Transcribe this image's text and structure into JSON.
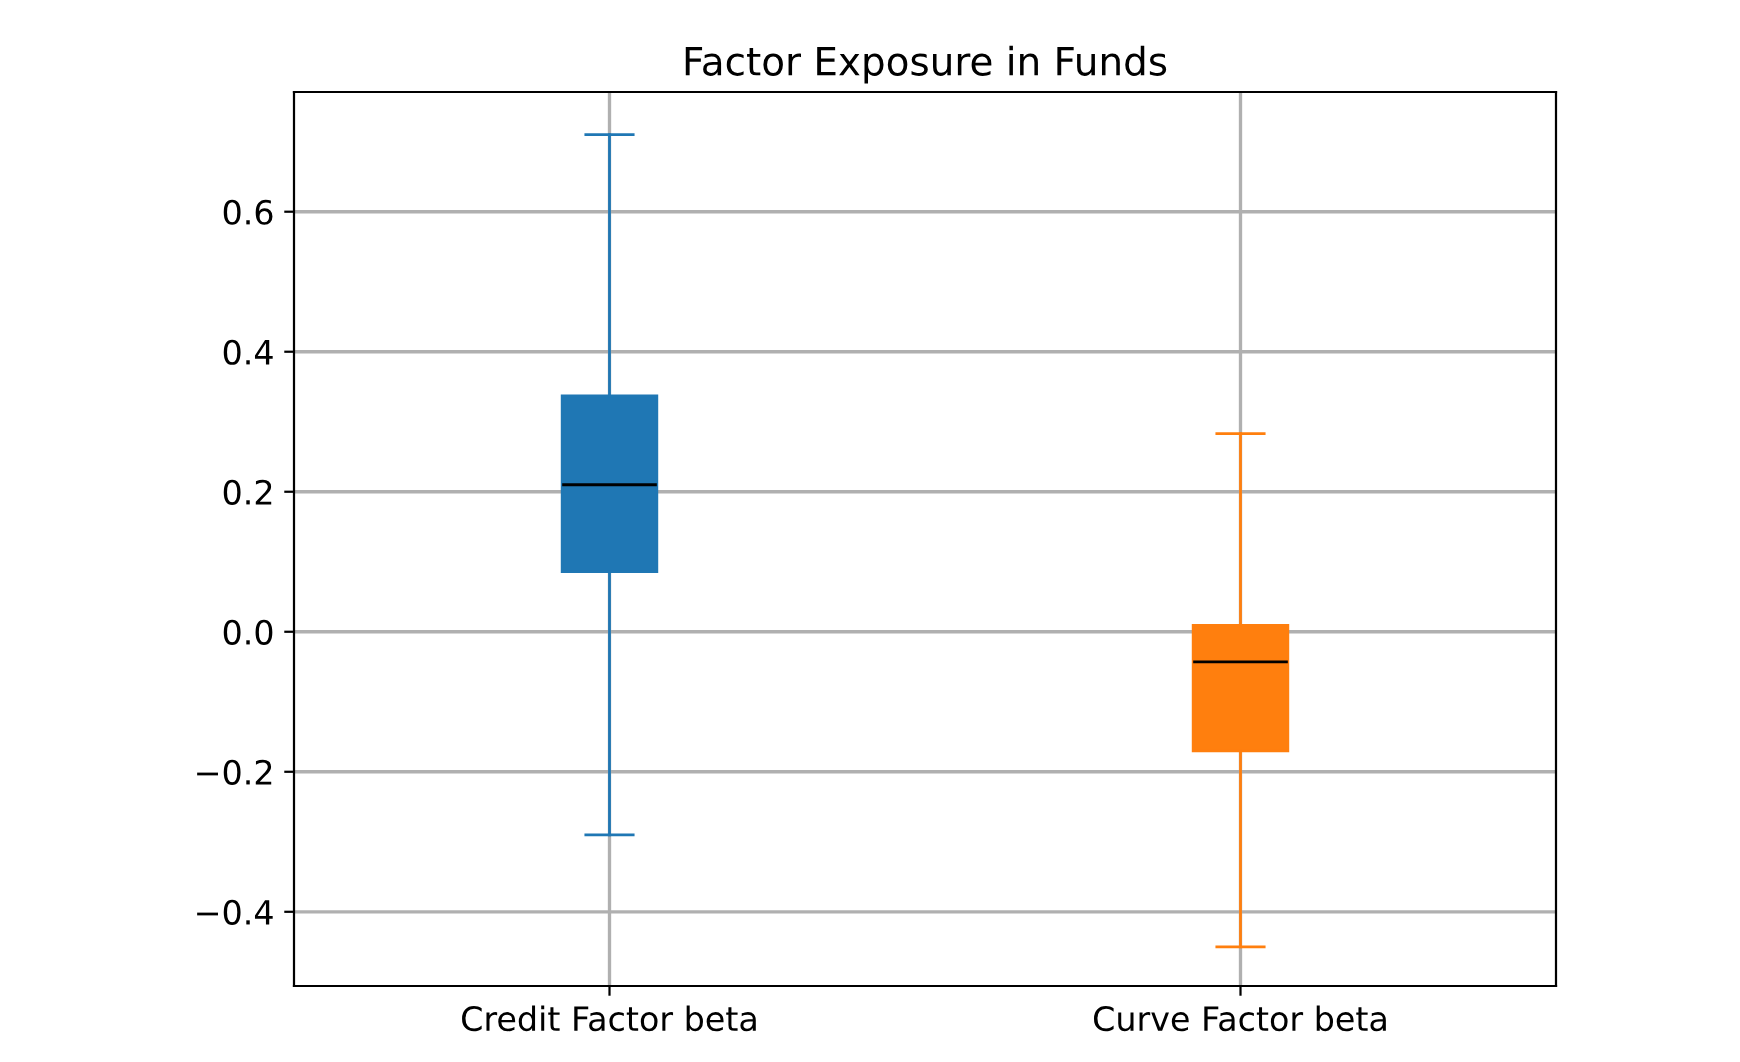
{
  "chart_data": {
    "type": "box",
    "title": "Factor Exposure in Funds",
    "categories": [
      "Credit Factor beta",
      "Curve Factor beta"
    ],
    "colors": [
      "#1f77b4",
      "#ff7f0e"
    ],
    "boxes": [
      {
        "low": -0.29,
        "q1": 0.086,
        "median": 0.21,
        "q3": 0.337,
        "high": 0.71
      },
      {
        "low": -0.45,
        "q1": -0.17,
        "median": -0.043,
        "q3": 0.009,
        "high": 0.283
      }
    ],
    "ylim": [
      -0.506,
      0.771
    ],
    "yticks": [
      {
        "value": -0.4,
        "label": "−0.4"
      },
      {
        "value": -0.2,
        "label": "−0.2"
      },
      {
        "value": 0.0,
        "label": "0.0"
      },
      {
        "value": 0.2,
        "label": "0.2"
      },
      {
        "value": 0.4,
        "label": "0.4"
      },
      {
        "value": 0.6,
        "label": "0.6"
      }
    ],
    "grid": true
  }
}
